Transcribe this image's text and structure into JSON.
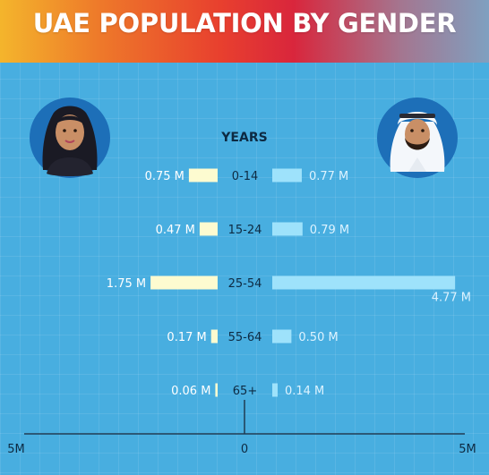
{
  "title": "UAE POPULATION BY GENDER",
  "chart_data": {
    "type": "bar",
    "orientation": "horizontal-diverging",
    "title": "UAE POPULATION BY GENDER",
    "category_axis_label": "YEARS",
    "categories": [
      "0-14",
      "15-24",
      "25-54",
      "55-64",
      "65+"
    ],
    "series": [
      {
        "side": "left",
        "values": [
          0.75,
          0.47,
          1.75,
          0.17,
          0.06
        ],
        "labels": [
          "0.75 M",
          "0.47 M",
          "1.75 M",
          "0.17 M",
          "0.06 M"
        ],
        "color": "#fdfbd0",
        "icon": "woman-avatar-icon"
      },
      {
        "side": "right",
        "values": [
          0.77,
          0.79,
          4.77,
          0.5,
          0.14
        ],
        "labels": [
          "0.77 M",
          "0.79 M",
          "4.77 M",
          "0.50 M",
          "0.14 M"
        ],
        "color": "#9ee2fb",
        "icon": "man-avatar-icon"
      }
    ],
    "xlim": [
      -5,
      5
    ],
    "x_tick_labels": [
      "5M",
      "0",
      "5M"
    ],
    "grid": true,
    "legend": "none"
  },
  "colors": {
    "background": "#48aee0",
    "female_bar": "#fdfbd0",
    "male_bar": "#9ee2fb",
    "axis": "#1f3b52"
  }
}
